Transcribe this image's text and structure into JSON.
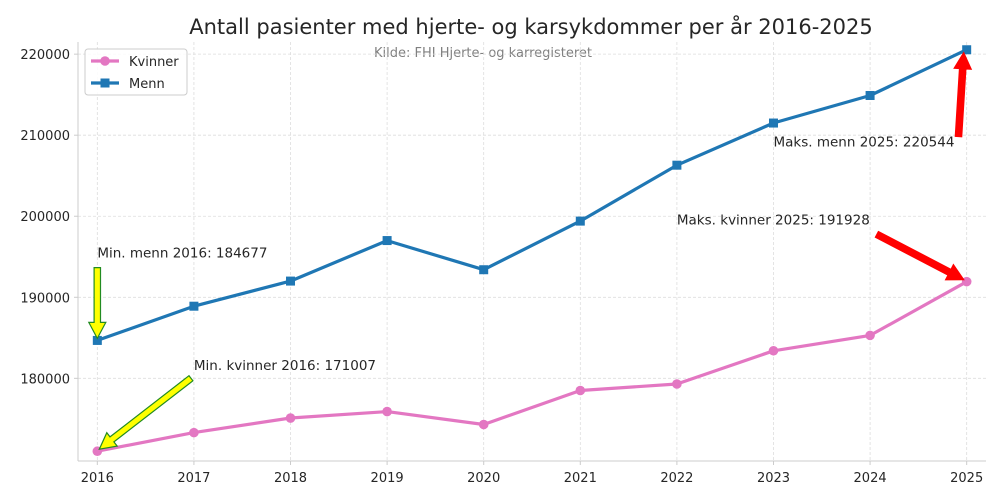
{
  "chart_data": {
    "type": "line",
    "title": "Antall pasienter med hjerte- og karsykdommer per år 2016-2025",
    "subtitle": "Kilde: FHI Hjerte- og karregisteret",
    "x": [
      2016,
      2017,
      2018,
      2019,
      2020,
      2021,
      2022,
      2023,
      2024,
      2025
    ],
    "series": [
      {
        "name": "Kvinner",
        "color": "#e377c2",
        "marker": "circle",
        "values": [
          171007,
          173300,
          175100,
          175900,
          174300,
          178500,
          179300,
          183400,
          185300,
          191928
        ]
      },
      {
        "name": "Menn",
        "color": "#1f77b4",
        "marker": "square",
        "values": [
          184677,
          188900,
          192000,
          197000,
          193400,
          199400,
          206300,
          211500,
          214900,
          220544
        ]
      }
    ],
    "xlim": [
      2015.8,
      2025.2
    ],
    "ylim": [
      169800,
      221500
    ],
    "yticks": [
      180000,
      190000,
      200000,
      210000,
      220000
    ],
    "grid": true,
    "legend": "top-left",
    "annotations": [
      {
        "text": "Min. menn 2016: 184677",
        "x": 2016,
        "y": 184677,
        "arrow_color": "#ffff00",
        "arrow_edge": "#228b22",
        "label_x": 2016,
        "label_y": 194900
      },
      {
        "text": "Min. kvinner 2016: 171007",
        "x": 2016,
        "y": 171007,
        "arrow_color": "#ffff00",
        "arrow_edge": "#228b22",
        "label_x": 2017,
        "label_y": 181000
      },
      {
        "text": "Maks. kvinner 2025: 191928",
        "x": 2025,
        "y": 191928,
        "arrow_color": "#ff0000",
        "arrow_edge": "#ff0000",
        "label_x": 2022,
        "label_y": 199000
      },
      {
        "text": "Maks. menn 2025: 220544",
        "x": 2025,
        "y": 220544,
        "arrow_color": "#ff0000",
        "arrow_edge": "#ff0000",
        "label_x": 2023,
        "label_y": 208600
      }
    ]
  }
}
